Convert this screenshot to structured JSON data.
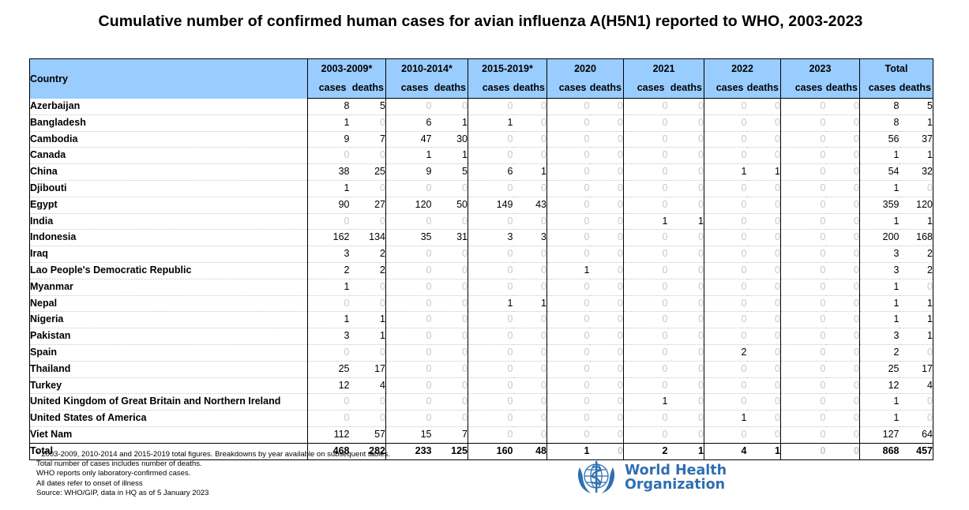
{
  "title": "Cumulative number of confirmed human cases for avian influenza A(H5N1) reported to WHO, 2003-2023",
  "header": {
    "country": "Country",
    "groups": [
      "2003-2009*",
      "2010-2014*",
      "2015-2019*",
      "2020",
      "2021",
      "2022",
      "2023",
      "Total"
    ],
    "cases": "cases",
    "deaths": "deaths"
  },
  "rows": [
    {
      "country": "Azerbaijan",
      "v": [
        "8",
        "5",
        "0",
        "0",
        "0",
        "0",
        "0",
        "0",
        "0",
        "0",
        "0",
        "0",
        "0",
        "0",
        "8",
        "5"
      ]
    },
    {
      "country": "Bangladesh",
      "v": [
        "1",
        "0",
        "6",
        "1",
        "1",
        "0",
        "0",
        "0",
        "0",
        "0",
        "0",
        "0",
        "0",
        "0",
        "8",
        "1"
      ]
    },
    {
      "country": "Cambodia",
      "v": [
        "9",
        "7",
        "47",
        "30",
        "0",
        "0",
        "0",
        "0",
        "0",
        "0",
        "0",
        "0",
        "0",
        "0",
        "56",
        "37"
      ]
    },
    {
      "country": "Canada",
      "v": [
        "0",
        "0",
        "1",
        "1",
        "0",
        "0",
        "0",
        "0",
        "0",
        "0",
        "0",
        "0",
        "0",
        "0",
        "1",
        "1"
      ]
    },
    {
      "country": "China",
      "v": [
        "38",
        "25",
        "9",
        "5",
        "6",
        "1",
        "0",
        "0",
        "0",
        "0",
        "1",
        "1",
        "0",
        "0",
        "54",
        "32"
      ]
    },
    {
      "country": "Djibouti",
      "v": [
        "1",
        "0",
        "0",
        "0",
        "0",
        "0",
        "0",
        "0",
        "0",
        "0",
        "0",
        "0",
        "0",
        "0",
        "1",
        "0"
      ]
    },
    {
      "country": "Egypt",
      "v": [
        "90",
        "27",
        "120",
        "50",
        "149",
        "43",
        "0",
        "0",
        "0",
        "0",
        "0",
        "0",
        "0",
        "0",
        "359",
        "120"
      ]
    },
    {
      "country": "India",
      "v": [
        "0",
        "0",
        "0",
        "0",
        "0",
        "0",
        "0",
        "0",
        "1",
        "1",
        "0",
        "0",
        "0",
        "0",
        "1",
        "1"
      ]
    },
    {
      "country": "Indonesia",
      "v": [
        "162",
        "134",
        "35",
        "31",
        "3",
        "3",
        "0",
        "0",
        "0",
        "0",
        "0",
        "0",
        "0",
        "0",
        "200",
        "168"
      ]
    },
    {
      "country": "Iraq",
      "v": [
        "3",
        "2",
        "0",
        "0",
        "0",
        "0",
        "0",
        "0",
        "0",
        "0",
        "0",
        "0",
        "0",
        "0",
        "3",
        "2"
      ]
    },
    {
      "country": "Lao People's Democratic Republic",
      "v": [
        "2",
        "2",
        "0",
        "0",
        "0",
        "0",
        "1",
        "0",
        "0",
        "0",
        "0",
        "0",
        "0",
        "0",
        "3",
        "2"
      ]
    },
    {
      "country": "Myanmar",
      "v": [
        "1",
        "0",
        "0",
        "0",
        "0",
        "0",
        "0",
        "0",
        "0",
        "0",
        "0",
        "0",
        "0",
        "0",
        "1",
        "0"
      ]
    },
    {
      "country": "Nepal",
      "v": [
        "0",
        "0",
        "0",
        "0",
        "1",
        "1",
        "0",
        "0",
        "0",
        "0",
        "0",
        "0",
        "0",
        "0",
        "1",
        "1"
      ]
    },
    {
      "country": "Nigeria",
      "v": [
        "1",
        "1",
        "0",
        "0",
        "0",
        "0",
        "0",
        "0",
        "0",
        "0",
        "0",
        "0",
        "0",
        "0",
        "1",
        "1"
      ]
    },
    {
      "country": "Pakistan",
      "v": [
        "3",
        "1",
        "0",
        "0",
        "0",
        "0",
        "0",
        "0",
        "0",
        "0",
        "0",
        "0",
        "0",
        "0",
        "3",
        "1"
      ]
    },
    {
      "country": "Spain",
      "v": [
        "0",
        "0",
        "0",
        "0",
        "0",
        "0",
        "0",
        "0",
        "0",
        "0",
        "2",
        "0",
        "0",
        "0",
        "2",
        "0"
      ]
    },
    {
      "country": "Thailand",
      "v": [
        "25",
        "17",
        "0",
        "0",
        "0",
        "0",
        "0",
        "0",
        "0",
        "0",
        "0",
        "0",
        "0",
        "0",
        "25",
        "17"
      ]
    },
    {
      "country": "Turkey",
      "v": [
        "12",
        "4",
        "0",
        "0",
        "0",
        "0",
        "0",
        "0",
        "0",
        "0",
        "0",
        "0",
        "0",
        "0",
        "12",
        "4"
      ]
    },
    {
      "country": "United Kingdom of Great Britain and Northern Ireland",
      "v": [
        "0",
        "0",
        "0",
        "0",
        "0",
        "0",
        "0",
        "0",
        "1",
        "0",
        "0",
        "0",
        "0",
        "0",
        "1",
        "0"
      ]
    },
    {
      "country": "United States of America",
      "v": [
        "0",
        "0",
        "0",
        "0",
        "0",
        "0",
        "0",
        "0",
        "0",
        "0",
        "1",
        "0",
        "0",
        "0",
        "1",
        "0"
      ]
    },
    {
      "country": "Viet Nam",
      "v": [
        "112",
        "57",
        "15",
        "7",
        "0",
        "0",
        "0",
        "0",
        "0",
        "0",
        "0",
        "0",
        "0",
        "0",
        "127",
        "64"
      ]
    }
  ],
  "total": {
    "country": "Total",
    "v": [
      "468",
      "282",
      "233",
      "125",
      "160",
      "48",
      "1",
      "0",
      "2",
      "1",
      "4",
      "1",
      "0",
      "0",
      "868",
      "457"
    ]
  },
  "notes": [
    "* 2003-2009, 2010-2014 and 2015-2019 total figures. Breakdowns by year available on subsequent tables.",
    "Total number of cases includes number of deaths.",
    "WHO reports only laboratory-confirmed cases.",
    "All dates refer to onset of illness",
    "Source: WHO/GIP, data in HQ as of 5 January 2023"
  ],
  "logo": {
    "line1": "World Health",
    "line2": "Organization",
    "color": "#2f6fb0"
  },
  "colors": {
    "header_bg": "#99ccff",
    "zero_text": "#c8c8c8"
  }
}
